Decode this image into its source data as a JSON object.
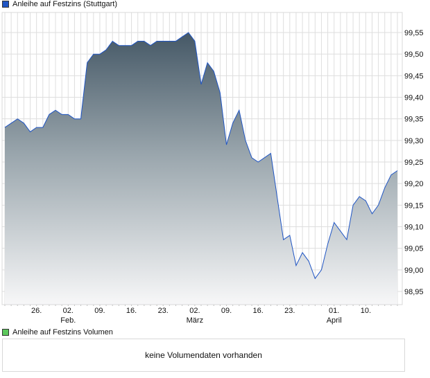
{
  "chart_data": {
    "type": "area",
    "title": "Anleihe auf Festzins (Stuttgart)",
    "xlabel": "",
    "ylabel": "",
    "ylim": [
      98.92,
      99.6
    ],
    "yticks": [
      98.95,
      99.0,
      99.05,
      99.1,
      99.15,
      99.2,
      99.25,
      99.3,
      99.35,
      99.4,
      99.45,
      99.5,
      99.55
    ],
    "ytick_labels": [
      "98,95",
      "99,00",
      "99,05",
      "99,10",
      "99,15",
      "99,20",
      "99,25",
      "99,30",
      "99,35",
      "99,40",
      "99,45",
      "99,50",
      "99,55"
    ],
    "x_range": [
      0,
      62
    ],
    "xticks": [
      {
        "index": 5,
        "label": "26.",
        "month": ""
      },
      {
        "index": 10,
        "label": "02.",
        "month": "Feb."
      },
      {
        "index": 15,
        "label": "09.",
        "month": ""
      },
      {
        "index": 20,
        "label": "16.",
        "month": ""
      },
      {
        "index": 25,
        "label": "23.",
        "month": ""
      },
      {
        "index": 30,
        "label": "02.",
        "month": "März"
      },
      {
        "index": 35,
        "label": "09.",
        "month": ""
      },
      {
        "index": 40,
        "label": "16.",
        "month": ""
      },
      {
        "index": 45,
        "label": "23.",
        "month": ""
      },
      {
        "index": 52,
        "label": "01.",
        "month": "April"
      },
      {
        "index": 57,
        "label": "10.",
        "month": ""
      }
    ],
    "grid": true,
    "series": [
      {
        "name": "Anleihe auf Festzins (Stuttgart)",
        "color": "#1f55c4",
        "values": [
          99.33,
          99.34,
          99.35,
          99.34,
          99.32,
          99.33,
          99.33,
          99.36,
          99.37,
          99.36,
          99.36,
          99.35,
          99.35,
          99.48,
          99.5,
          99.5,
          99.51,
          99.53,
          99.52,
          99.52,
          99.52,
          99.53,
          99.53,
          99.52,
          99.53,
          99.53,
          99.53,
          99.53,
          99.54,
          99.55,
          99.53,
          99.43,
          99.48,
          99.46,
          99.41,
          99.29,
          99.34,
          99.37,
          99.3,
          99.26,
          99.25,
          99.26,
          99.27,
          99.17,
          99.07,
          99.08,
          99.01,
          99.04,
          99.02,
          98.98,
          99.0,
          99.06,
          99.11,
          99.09,
          99.07,
          99.15,
          99.17,
          99.16,
          99.13,
          99.15,
          99.19,
          99.22,
          99.23
        ]
      }
    ]
  },
  "volume": {
    "legend": "Anleihe auf Festzins Volumen",
    "legend_color": "#5cc85c",
    "message": "keine Volumendaten vorhanden"
  }
}
